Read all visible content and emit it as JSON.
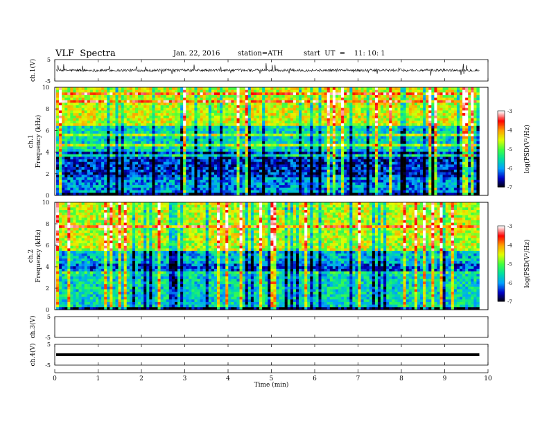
{
  "header": {
    "title": "VLF  Spectra",
    "date": "Jan. 22, 2016",
    "station": "station=ATH",
    "start": "start  UT  =    11: 10: 1"
  },
  "chart_data": {
    "type": "heatmap",
    "xlabel": "Time  (min)",
    "xlim": [
      0,
      10
    ],
    "x_ticks": [
      "0",
      "1",
      "2",
      "3",
      "4",
      "5",
      "6",
      "7",
      "8",
      "9",
      "10"
    ],
    "panels": [
      {
        "kind": "line",
        "ylabel": "ch.1(V)",
        "ylim": [
          -5,
          5
        ],
        "y_ticks": [
          "5",
          "-5"
        ]
      },
      {
        "kind": "spectrogram",
        "ylabel": "Frequency  (kHz)",
        "channel": "ch.1",
        "ylim": [
          0,
          10
        ],
        "y_ticks": [
          "0",
          "2",
          "4",
          "6",
          "8",
          "10"
        ]
      },
      {
        "kind": "spectrogram",
        "ylabel": "Frequency  (kHz)",
        "channel": "ch.2",
        "ylim": [
          0,
          10
        ],
        "y_ticks": [
          "0",
          "2",
          "4",
          "6",
          "8",
          "10"
        ]
      },
      {
        "kind": "line",
        "ylabel": "ch.3(V)",
        "ylim": [
          -5,
          5
        ],
        "y_ticks": [
          "5",
          "-5"
        ]
      },
      {
        "kind": "line",
        "ylabel": "ch.4(V)",
        "ylim": [
          -5,
          5
        ],
        "y_ticks": [
          "5",
          "-5"
        ]
      }
    ],
    "colorbar": {
      "label": "log(PSD(V²/Hz)",
      "ticks": [
        "-3",
        "-4",
        "-5",
        "-6",
        "-7"
      ],
      "range": [
        -7,
        -3
      ],
      "colors": [
        "#000000",
        "#0000c8",
        "#00a0ff",
        "#00e0a0",
        "#40ff40",
        "#e0ff00",
        "#ffa000",
        "#ff0000",
        "#ffffff"
      ]
    },
    "data_end_min": 9.8
  }
}
